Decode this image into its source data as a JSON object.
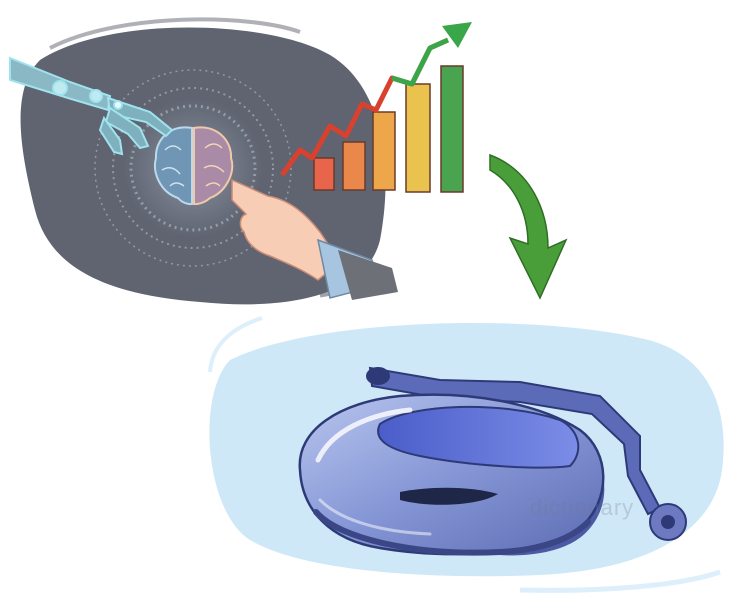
{
  "illustration": {
    "upper_panel": {
      "subjects": [
        "robot-hand-icon",
        "brain-icon",
        "human-hand-icon",
        "bar-chart-icon",
        "trend-arrow-icon"
      ],
      "bar_colors": [
        "#e8644a",
        "#e9884a",
        "#eda64a",
        "#e9c34e",
        "#4aa34e"
      ],
      "trend_line_colors": [
        "#d9412f",
        "#3aa64a"
      ]
    },
    "transition": {
      "arrow_color": "#4a9e3a"
    },
    "lower_panel": {
      "subjects": [
        "vacuum-robot-icon"
      ],
      "body_color": "#8ea0d8"
    },
    "colors": {
      "upper_background": "#5f6470",
      "lower_background": "#cfe8f8"
    },
    "watermark": {
      "text": "dictionary"
    }
  }
}
